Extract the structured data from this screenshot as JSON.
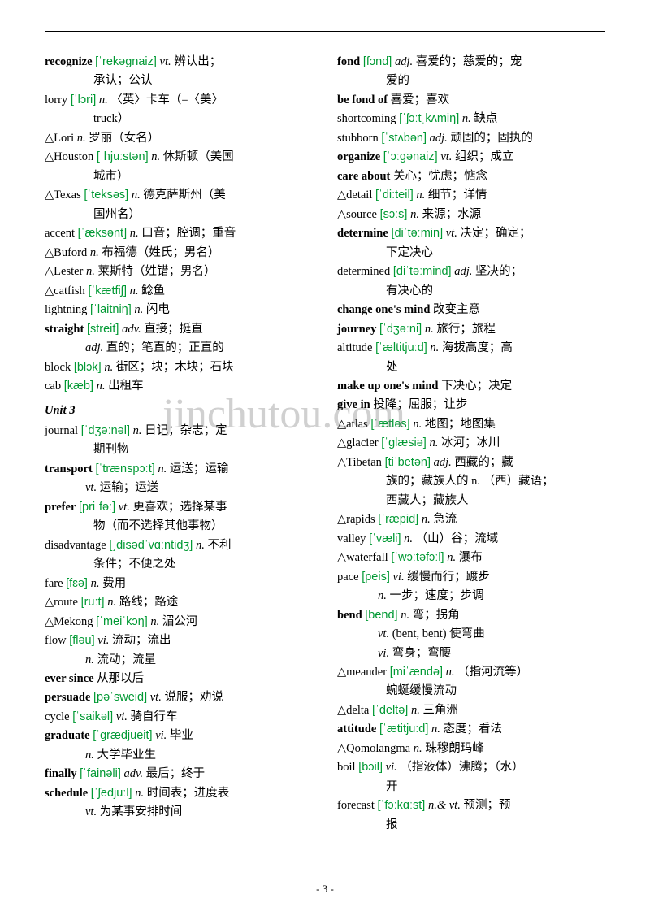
{
  "colors": {
    "ipa": "#009933",
    "text": "#000000",
    "background": "#ffffff",
    "watermark": "rgba(120,120,120,0.35)"
  },
  "fonts": {
    "body_size": 14.5,
    "watermark_size": 52,
    "line_height": 1.55
  },
  "watermark": "jinchutou.com",
  "page_number": "- 3 -",
  "left_column": [
    {
      "word": "recognize",
      "ipa": "[ˈrekəgnaiz]",
      "pos": "vt.",
      "def": "辨认出；",
      "bold": true,
      "cont": "承认；公认"
    },
    {
      "word": "lorry",
      "ipa": "[ˈlɔri]",
      "pos": "n.",
      "def": "〈英〉卡车（=〈美〉",
      "cont": "truck）"
    },
    {
      "word": "△Lori",
      "pos": "n.",
      "def": "罗丽（女名）"
    },
    {
      "word": "△Houston",
      "ipa": "[ˈhjuːstən]",
      "pos": "n.",
      "def": "休斯顿（美国",
      "cont": "城市）"
    },
    {
      "word": "△Texas",
      "ipa": "[ˈteksəs]",
      "pos": "n.",
      "def": "德克萨斯州（美",
      "cont": "国州名）"
    },
    {
      "word": "accent",
      "ipa": "[ˈæksənt]",
      "pos": "n.",
      "def": "口音；腔调；重音"
    },
    {
      "word": "△Buford",
      "pos": "n.",
      "def": "布福德（姓氏；男名）"
    },
    {
      "word": "△Lester",
      "pos": "n.",
      "def": "莱斯特（姓错；男名）"
    },
    {
      "word": "△catfish",
      "ipa": "[ˈkætfiʃ]",
      "pos": "n.",
      "def": "鲶鱼"
    },
    {
      "word": "lightning",
      "ipa": "[ˈlaitniŋ]",
      "pos": "n.",
      "def": "闪电"
    },
    {
      "word": "straight",
      "ipa": "[streit]",
      "pos": "adv.",
      "def": "直接；挺直",
      "bold": true,
      "extra": "adj.",
      "extra_def": "直的；笔直的；正直的"
    },
    {
      "word": "block",
      "ipa": "[blɔk]",
      "pos": "n.",
      "def": "街区；块；木块；石块"
    },
    {
      "word": "cab",
      "ipa": "[kæb]",
      "pos": "n.",
      "def": "出租车"
    },
    {
      "unit": "Unit 3"
    },
    {
      "word": "journal",
      "ipa": "[ˈdʒəːnəl]",
      "pos": "n.",
      "def": "日记；杂志；定",
      "cont": "期刊物"
    },
    {
      "word": "transport",
      "ipa": "[ˈtrænspɔːt]",
      "pos": "n.",
      "def": "运送；运输",
      "bold": true,
      "extra": "vt.",
      "extra_def": "运输；运送"
    },
    {
      "word": "prefer",
      "ipa": "[priˈfəː]",
      "pos": "vt.",
      "def": "更喜欢；选择某事",
      "bold": true,
      "cont": "物（而不选择其他事物）"
    },
    {
      "word": "disadvantage",
      "ipa": "[͵disədˈvɑːntidʒ]",
      "pos": "n.",
      "def": "不利",
      "cont": "条件；不便之处"
    },
    {
      "word": "fare",
      "ipa": "[fɛə]",
      "pos": "n.",
      "def": "费用"
    },
    {
      "word": "△route",
      "ipa": "[ruːt]",
      "pos": "n.",
      "def": "路线；路途"
    },
    {
      "word": "△Mekong",
      "ipa": "[ˈmeiˈkɔŋ]",
      "pos": "n.",
      "def": "湄公河"
    },
    {
      "word": "flow",
      "ipa": "[fləu]",
      "pos": "vi.",
      "def": "流动；流出",
      "extra": "n.",
      "extra_def": "流动；流量"
    },
    {
      "word": "ever since",
      "def": "从那以后",
      "bold": true
    },
    {
      "word": "persuade",
      "ipa": "[pəˈsweid]",
      "pos": "vt.",
      "def": "说服；劝说",
      "bold": true
    },
    {
      "word": "cycle",
      "ipa": "[ˈsaikəl]",
      "pos": "vi.",
      "def": "骑自行车"
    },
    {
      "word": "graduate",
      "ipa": "[ˈgrædjueit]",
      "pos": "vi.",
      "def": "毕业",
      "bold": true,
      "extra": "n.",
      "extra_def": "大学毕业生"
    },
    {
      "word": "finally",
      "ipa": "[ˈfainəli]",
      "pos": "adv.",
      "def": "最后；终于",
      "bold": true
    },
    {
      "word": "schedule",
      "ipa": "[ˈʃedjuːl]",
      "pos": "n.",
      "def": "时间表；进度表",
      "bold": true,
      "extra": "vt.",
      "extra_def": "为某事安排时间"
    }
  ],
  "right_column": [
    {
      "word": "fond",
      "ipa": "[fɔnd]",
      "pos": "adj.",
      "def": "喜爱的；慈爱的；宠",
      "bold": true,
      "cont": "爱的"
    },
    {
      "word": "be fond of",
      "def": "喜爱；喜欢",
      "bold": true
    },
    {
      "word": "shortcoming",
      "ipa": "[ˈʃɔːtˌkʌmiŋ]",
      "pos": "n.",
      "def": "缺点"
    },
    {
      "word": "stubborn",
      "ipa": "[ˈstʌbən]",
      "pos": "adj.",
      "def": "顽固的；固执的"
    },
    {
      "word": "organize",
      "ipa": "[ˈɔːgənaiz]",
      "pos": "vt.",
      "def": "组织；成立",
      "bold": true
    },
    {
      "word": "care about",
      "def": "关心；忧虑；惦念",
      "bold": true
    },
    {
      "word": "△detail",
      "ipa": "[ˈdiːteil]",
      "pos": "n.",
      "def": "细节；详情"
    },
    {
      "word": "△source",
      "ipa": "[sɔːs]",
      "pos": "n.",
      "def": "来源；水源"
    },
    {
      "word": "determine",
      "ipa": "[diˈtəːmin]",
      "pos": "vt.",
      "def": "决定；确定；",
      "bold": true,
      "cont": "下定决心"
    },
    {
      "word": "determined",
      "ipa": "[diˈtəːmind]",
      "pos": "adj.",
      "def": "坚决的；",
      "cont": "有决心的"
    },
    {
      "word": "change one's mind",
      "def": "改变主意",
      "bold": true
    },
    {
      "word": "journey",
      "ipa": "[ˈdʒəːni]",
      "pos": "n.",
      "def": "旅行；旅程",
      "bold": true
    },
    {
      "word": "altitude",
      "ipa": "[ˈæltitjuːd]",
      "pos": "n.",
      "def": "海拔高度；高",
      "cont": "处"
    },
    {
      "word": "make up one's mind",
      "def": "下决心；决定",
      "bold": true
    },
    {
      "word": "give in",
      "def": "投降；屈服；让步",
      "bold": true
    },
    {
      "word": "△atlas",
      "ipa": "[ˈætləs]",
      "pos": "n.",
      "def": "地图；地图集"
    },
    {
      "word": "△glacier",
      "ipa": "[ˈglæsiə]",
      "pos": "n.",
      "def": "冰河；冰川"
    },
    {
      "word": "△Tibetan",
      "ipa": "[tiˈbetən]",
      "pos": "adj.",
      "def": "西藏的；藏",
      "cont": "族的；藏族人的 n. （西）藏语；",
      "cont2": "西藏人；藏族人"
    },
    {
      "word": "△rapids",
      "ipa": "[ˈræpid]",
      "pos": "n.",
      "def": "急流"
    },
    {
      "word": "valley",
      "ipa": "[ˈvæli]",
      "pos": "n.",
      "def": "（山）谷；流域"
    },
    {
      "word": "△waterfall",
      "ipa": "[ˈwɔːtəfɔːl]",
      "pos": "n.",
      "def": "瀑布"
    },
    {
      "word": "pace",
      "ipa": "[peis]",
      "pos": "vi.",
      "def": "缓慢而行；踱步",
      "extra": "n.",
      "extra_def": "一步；速度；步调"
    },
    {
      "word": "bend",
      "ipa": "[bend]",
      "pos": "n.",
      "def": "弯；拐角",
      "bold": true,
      "extra": "vt.",
      "extra_def": "(bent, bent) 使弯曲",
      "extra2": "vi.",
      "extra2_def": "弯身；弯腰"
    },
    {
      "word": "△meander",
      "ipa": "[miˈændə]",
      "pos": "n.",
      "def": "（指河流等）",
      "cont": "蜿蜒缓慢流动"
    },
    {
      "word": "△delta",
      "ipa": "[ˈdeltə]",
      "pos": "n.",
      "def": "三角洲"
    },
    {
      "word": "attitude",
      "ipa": "[ˈætitjuːd]",
      "pos": "n.",
      "def": "态度；看法",
      "bold": true
    },
    {
      "word": "△Qomolangma",
      "pos": "n.",
      "def": "珠穆朗玛峰"
    },
    {
      "word": "boil",
      "ipa": "[bɔil]",
      "pos": "vi.",
      "def": "（指液体）沸腾；（水）",
      "cont": "开"
    },
    {
      "word": "forecast",
      "ipa": "[ˈfɔːkɑːst]",
      "pos": "n.& vt.",
      "def": "预测；预",
      "cont": "报"
    }
  ]
}
